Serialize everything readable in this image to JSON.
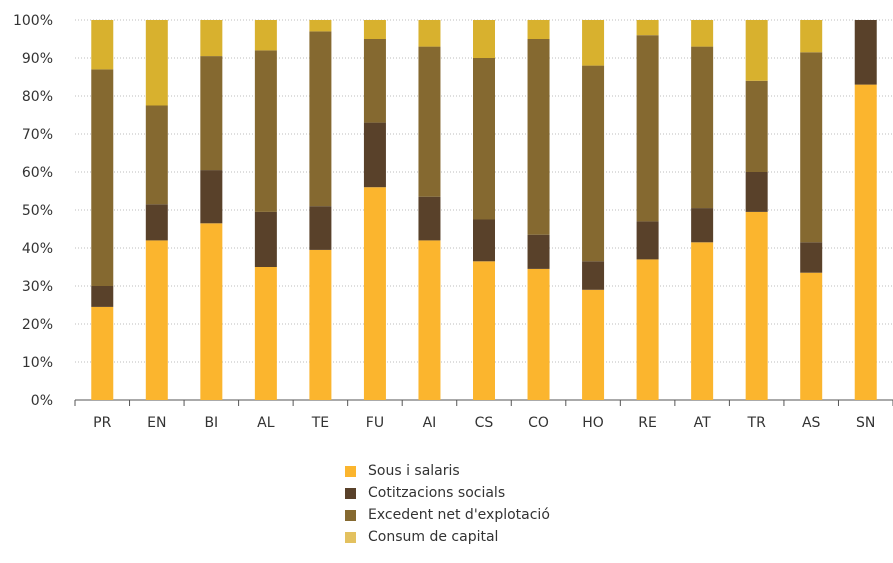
{
  "chart_data": {
    "type": "bar",
    "stacked": true,
    "categories": [
      "PR",
      "EN",
      "BI",
      "AL",
      "TE",
      "FU",
      "AI",
      "CS",
      "CO",
      "HO",
      "RE",
      "AT",
      "TR",
      "AS",
      "SN"
    ],
    "ylim": [
      0,
      100
    ],
    "yticks": [
      "0%",
      "10%",
      "20%",
      "30%",
      "40%",
      "50%",
      "60%",
      "70%",
      "80%",
      "90%",
      "100%"
    ],
    "grid": true,
    "legend_position": "bottom",
    "series": [
      {
        "name": "Sous i salaris",
        "color": "#FBB52E",
        "values": [
          24.5,
          42,
          46.5,
          35,
          39.5,
          56,
          42,
          36.5,
          34.5,
          29,
          37,
          41.5,
          49.5,
          33.5,
          83
        ]
      },
      {
        "name": "Cotitzacions socials",
        "color": "#59412A",
        "values": [
          5.5,
          9.5,
          14,
          14.5,
          11.5,
          17,
          11.5,
          11,
          9,
          7.5,
          10,
          9,
          10.5,
          8,
          17
        ]
      },
      {
        "name": "Excedent net d'explotació",
        "color": "#856930",
        "values": [
          57,
          26,
          30,
          42.5,
          46,
          22,
          39.5,
          42.5,
          51.5,
          51.5,
          49,
          42.5,
          24,
          50,
          0
        ]
      },
      {
        "name": "Consum de capital",
        "color": "#D8B12E",
        "values": [
          13,
          22.5,
          9.5,
          8,
          3,
          5,
          7,
          10,
          5,
          12,
          4,
          7,
          16,
          8.5,
          0
        ]
      }
    ]
  }
}
